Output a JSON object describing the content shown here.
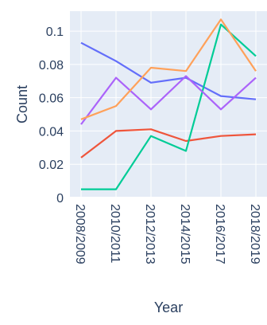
{
  "chart_data": {
    "type": "line",
    "title": "",
    "xlabel": "Year",
    "ylabel": "Count",
    "categories": [
      "2008/2009",
      "2010/2011",
      "2012/2013",
      "2014/2015",
      "2016/2017",
      "2018/2019"
    ],
    "ylim": [
      0,
      0.112
    ],
    "yticks": [
      0,
      0.02,
      0.04,
      0.06,
      0.08,
      0.1
    ],
    "ytick_labels": [
      "0",
      "0.02",
      "0.04",
      "0.06",
      "0.08",
      "0.1"
    ],
    "grid": true,
    "legend": "none",
    "colors": {
      "plot_background": "#e5ecf6",
      "grid": "#ffffff",
      "text": "#2a3f5f"
    },
    "series": [
      {
        "color": "#636efa",
        "values": [
          0.093,
          0.082,
          0.069,
          0.072,
          0.061,
          0.059
        ]
      },
      {
        "color": "#ef553b",
        "values": [
          0.024,
          0.04,
          0.041,
          0.034,
          0.037,
          0.038
        ]
      },
      {
        "color": "#00cc96",
        "values": [
          0.005,
          0.005,
          0.037,
          0.028,
          0.104,
          0.085
        ]
      },
      {
        "color": "#ab63fa",
        "values": [
          0.044,
          0.072,
          0.053,
          0.073,
          0.053,
          0.072
        ]
      },
      {
        "color": "#ffa15a",
        "values": [
          0.047,
          0.055,
          0.078,
          0.076,
          0.107,
          0.076
        ]
      }
    ]
  }
}
